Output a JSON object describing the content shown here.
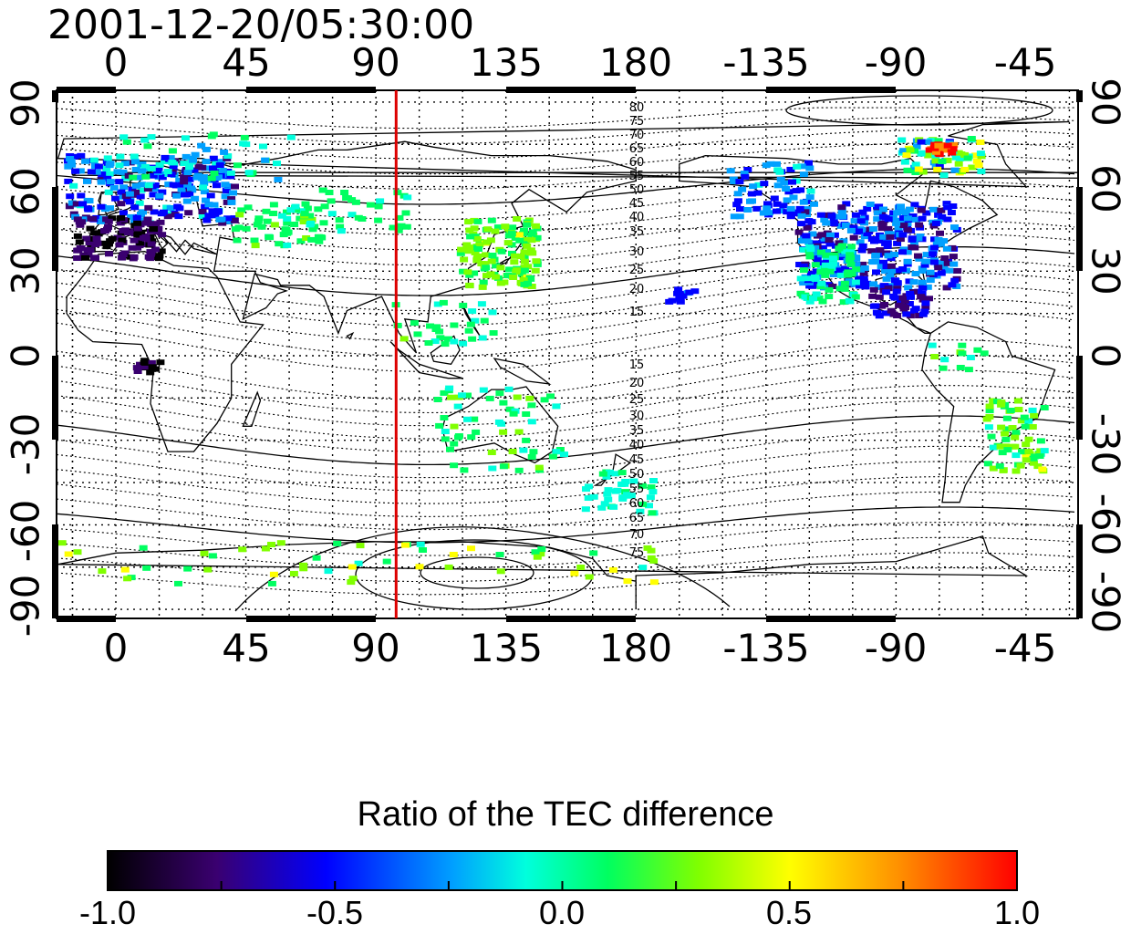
{
  "title": "2001-12-20/05:30:00",
  "axes": {
    "x_ticks": [
      "0",
      "45",
      "90",
      "135",
      "180",
      "-135",
      "-90",
      "-45"
    ],
    "y_ticks": [
      "90",
      "60",
      "30",
      "0",
      "-30",
      "-60",
      "-90"
    ]
  },
  "meridian_marker": {
    "longitude": 97,
    "color": "#dd0000"
  },
  "contour_labels_north": [
    "80",
    "75",
    "70",
    "65",
    "60",
    "55",
    "50",
    "45",
    "40",
    "35",
    "30",
    "25",
    "20",
    "15"
  ],
  "contour_labels_south": [
    "15",
    "20",
    "25",
    "30",
    "35",
    "40",
    "45",
    "50",
    "55",
    "60",
    "65",
    "70",
    "75"
  ],
  "colorbar": {
    "title": "Ratio of the TEC difference",
    "ticks": [
      "-1.0",
      "-0.5",
      "0.0",
      "0.5",
      "1.0"
    ],
    "range": [
      -1.0,
      1.0
    ],
    "colors": [
      "#000000",
      "#3a0070",
      "#0000ff",
      "#00a0ff",
      "#00ffdd",
      "#00ff60",
      "#80ff00",
      "#ffff00",
      "#ff9000",
      "#ff0000"
    ]
  }
}
